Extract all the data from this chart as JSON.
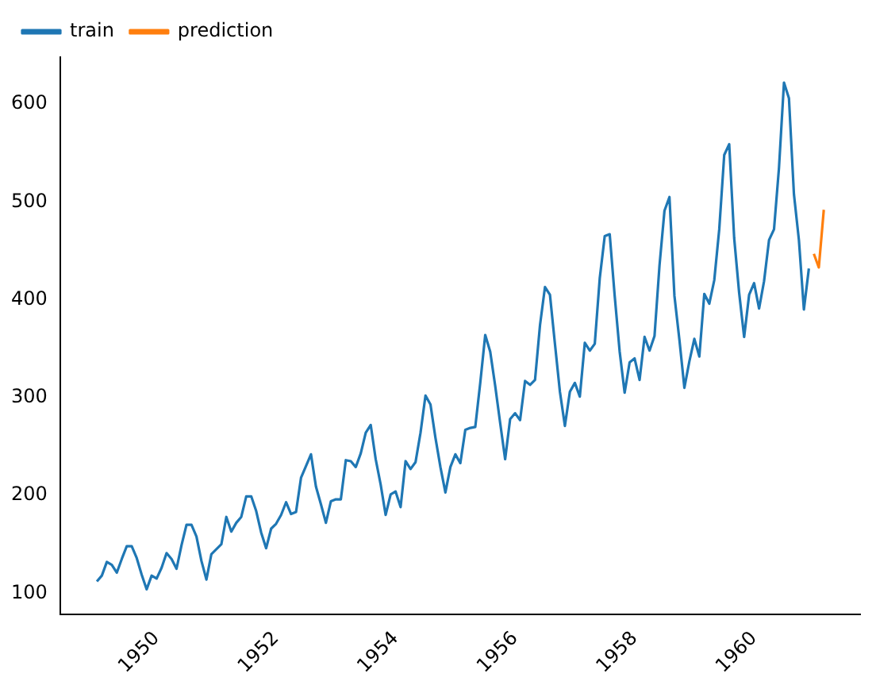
{
  "chart_data": {
    "type": "line",
    "legend": "top left",
    "grid": false,
    "marker": "none",
    "line_style": "solid",
    "xlim": [
      "1948-05-20",
      "1961-10-10"
    ],
    "xticks": [
      "1950",
      "1952",
      "1954",
      "1956",
      "1958",
      "1960"
    ],
    "ylim": [
      78,
      648
    ],
    "yticks": [
      100,
      200,
      300,
      400,
      500,
      600
    ],
    "series": [
      {
        "name": "train",
        "color": "#1f77b4",
        "x": [
          "1949-01",
          "1949-02",
          "1949-03",
          "1949-04",
          "1949-05",
          "1949-06",
          "1949-07",
          "1949-08",
          "1949-09",
          "1949-10",
          "1949-11",
          "1949-12",
          "1950-01",
          "1950-02",
          "1950-03",
          "1950-04",
          "1950-05",
          "1950-06",
          "1950-07",
          "1950-08",
          "1950-09",
          "1950-10",
          "1950-11",
          "1950-12",
          "1951-01",
          "1951-02",
          "1951-03",
          "1951-04",
          "1951-05",
          "1951-06",
          "1951-07",
          "1951-08",
          "1951-09",
          "1951-10",
          "1951-11",
          "1951-12",
          "1952-01",
          "1952-02",
          "1952-03",
          "1952-04",
          "1952-05",
          "1952-06",
          "1952-07",
          "1952-08",
          "1952-09",
          "1952-10",
          "1952-11",
          "1952-12",
          "1953-01",
          "1953-02",
          "1953-03",
          "1953-04",
          "1953-05",
          "1953-06",
          "1953-07",
          "1953-08",
          "1953-09",
          "1953-10",
          "1953-11",
          "1953-12",
          "1954-01",
          "1954-02",
          "1954-03",
          "1954-04",
          "1954-05",
          "1954-06",
          "1954-07",
          "1954-08",
          "1954-09",
          "1954-10",
          "1954-11",
          "1954-12",
          "1955-01",
          "1955-02",
          "1955-03",
          "1955-04",
          "1955-05",
          "1955-06",
          "1955-07",
          "1955-08",
          "1955-09",
          "1955-10",
          "1955-11",
          "1955-12",
          "1956-01",
          "1956-02",
          "1956-03",
          "1956-04",
          "1956-05",
          "1956-06",
          "1956-07",
          "1956-08",
          "1956-09",
          "1956-10",
          "1956-11",
          "1956-12",
          "1957-01",
          "1957-02",
          "1957-03",
          "1957-04",
          "1957-05",
          "1957-06",
          "1957-07",
          "1957-08",
          "1957-09",
          "1957-10",
          "1957-11",
          "1957-12",
          "1958-01",
          "1958-02",
          "1958-03",
          "1958-04",
          "1958-05",
          "1958-06",
          "1958-07",
          "1958-08",
          "1958-09",
          "1958-10",
          "1958-11",
          "1958-12",
          "1959-01",
          "1959-02",
          "1959-03",
          "1959-04",
          "1959-05",
          "1959-06",
          "1959-07",
          "1959-08",
          "1959-09",
          "1959-10",
          "1959-11",
          "1959-12",
          "1960-01",
          "1960-02",
          "1960-03",
          "1960-04",
          "1960-05",
          "1960-06",
          "1960-07",
          "1960-08",
          "1960-09",
          "1960-10",
          "1960-11",
          "1960-12"
        ],
        "values": [
          112,
          118,
          132,
          129,
          121,
          135,
          148,
          148,
          136,
          119,
          104,
          118,
          115,
          126,
          141,
          135,
          125,
          149,
          170,
          170,
          158,
          133,
          114,
          140,
          145,
          150,
          178,
          163,
          172,
          178,
          199,
          199,
          184,
          162,
          146,
          166,
          171,
          180,
          193,
          181,
          183,
          218,
          230,
          242,
          209,
          191,
          172,
          194,
          196,
          196,
          236,
          235,
          229,
          243,
          264,
          272,
          237,
          211,
          180,
          201,
          204,
          188,
          235,
          227,
          234,
          264,
          302,
          293,
          259,
          229,
          203,
          229,
          242,
          233,
          267,
          269,
          270,
          315,
          364,
          347,
          312,
          274,
          237,
          278,
          284,
          277,
          317,
          313,
          318,
          374,
          413,
          405,
          355,
          306,
          271,
          306,
          315,
          301,
          356,
          348,
          355,
          422,
          465,
          467,
          404,
          347,
          305,
          336,
          340,
          318,
          362,
          348,
          363,
          435,
          491,
          505,
          404,
          359,
          310,
          337,
          360,
          342,
          406,
          396,
          420,
          472,
          548,
          559,
          463,
          407,
          362,
          405,
          417,
          391,
          419,
          461,
          472,
          535,
          622,
          606,
          508,
          461,
          390,
          432
        ]
      },
      {
        "name": "prediction",
        "color": "#ff7f0e",
        "x": [
          "1961-01",
          "1961-02",
          "1961-03"
        ],
        "values": [
          447,
          433,
          492
        ]
      }
    ]
  }
}
